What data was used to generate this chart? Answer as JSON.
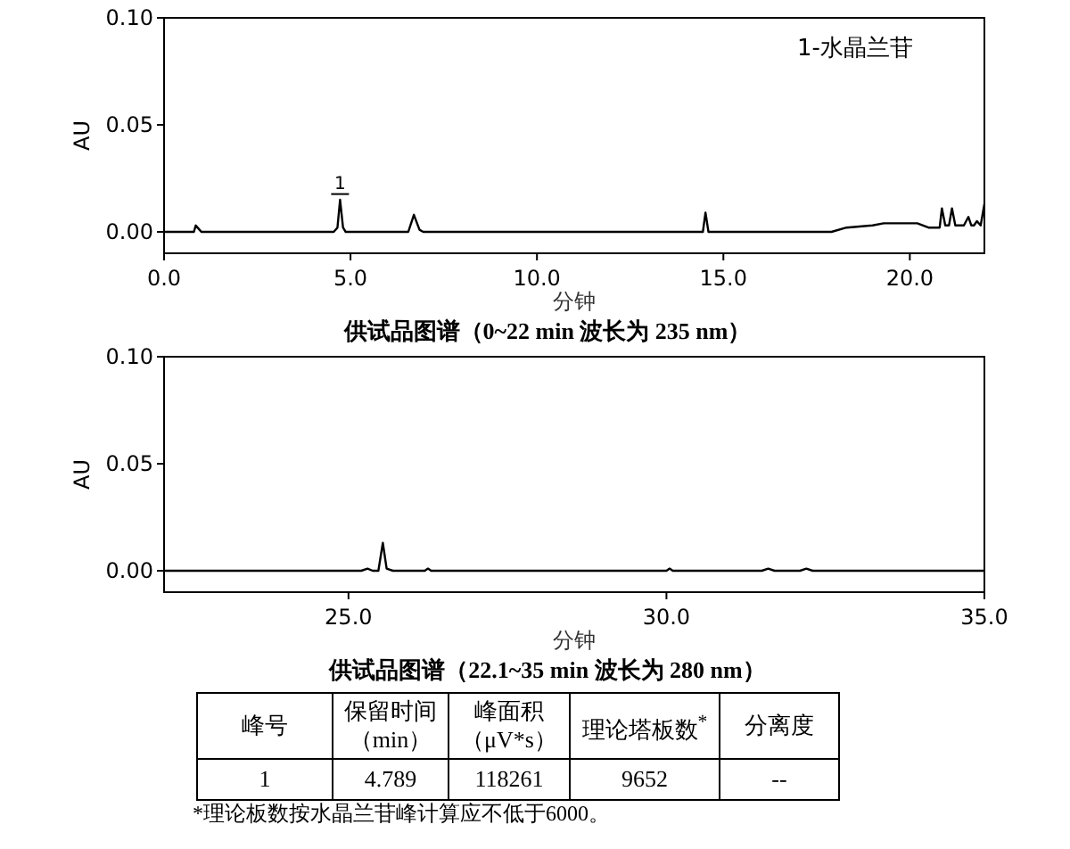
{
  "chart_data": [
    {
      "type": "line",
      "title": "供试品图谱（0~22 min 波长为 235 nm）",
      "xlabel": "分钟",
      "ylabel": "AU",
      "color": "#000000",
      "x": [
        0,
        0.8,
        0.85,
        0.95,
        1.0,
        4.55,
        4.65,
        4.72,
        4.8,
        4.87,
        6.55,
        6.7,
        6.85,
        6.95,
        14.45,
        14.52,
        14.6,
        17.9,
        18.3,
        19.0,
        19.3,
        20.2,
        20.5,
        20.8,
        20.86,
        20.95,
        21.05,
        21.13,
        21.22,
        21.45,
        21.57,
        21.65,
        21.72,
        21.8,
        21.9,
        22.0
      ],
      "values": [
        0,
        0,
        0.003,
        0.001,
        0,
        0,
        0.002,
        0.015,
        0.002,
        0,
        0,
        0.008,
        0.001,
        0,
        0,
        0.009,
        0,
        0,
        0.002,
        0.003,
        0.004,
        0.004,
        0.002,
        0.002,
        0.011,
        0.003,
        0.003,
        0.011,
        0.003,
        0.003,
        0.007,
        0.003,
        0.003,
        0.005,
        0.003,
        0.013
      ],
      "xlim": [
        0,
        22
      ],
      "ylim": [
        -0.01,
        0.1
      ],
      "xticks": [
        {
          "value": 0,
          "label": "0.0"
        },
        {
          "value": 5,
          "label": "5.0"
        },
        {
          "value": 10,
          "label": "10.0"
        },
        {
          "value": 15,
          "label": "15.0"
        },
        {
          "value": 20,
          "label": "20.0"
        }
      ],
      "yticks": [
        {
          "value": 0,
          "label": "0.00"
        },
        {
          "value": 0.05,
          "label": "0.05"
        },
        {
          "value": 0.1,
          "label": "0.10"
        }
      ],
      "annotations": [
        "1-水晶兰苷",
        {
          "text": "1",
          "x": 4.72,
          "y": 0.016
        }
      ]
    },
    {
      "type": "line",
      "title": "供试品图谱（22.1~35 min 波长为 280 nm）",
      "xlabel": "分钟",
      "ylabel": "AU",
      "color": "#000000",
      "x": [
        22.1,
        25.2,
        25.3,
        25.38,
        25.47,
        25.54,
        25.6,
        25.7,
        26.2,
        26.25,
        26.3,
        30.0,
        30.05,
        30.1,
        31.5,
        31.6,
        31.7,
        32.1,
        32.2,
        32.3,
        35
      ],
      "values": [
        0,
        0,
        0.001,
        0,
        0,
        0.013,
        0.001,
        0,
        0,
        0.001,
        0,
        0,
        0.001,
        0,
        0,
        0.001,
        0,
        0,
        0.001,
        0,
        0
      ],
      "xlim": [
        22.1,
        35
      ],
      "ylim": [
        -0.01,
        0.1
      ],
      "xticks": [
        {
          "value": 25,
          "label": "25.0"
        },
        {
          "value": 30,
          "label": "30.0"
        },
        {
          "value": 35,
          "label": "35.0"
        }
      ],
      "yticks": [
        {
          "value": 0,
          "label": "0.00"
        },
        {
          "value": 0.05,
          "label": "0.05"
        },
        {
          "value": 0.1,
          "label": "0.10"
        }
      ]
    },
    {
      "type": "other",
      "annotations": [
        "峰号",
        "保留时间（min）",
        "峰面积（μV*s）",
        "理论塔板数$^{*}$",
        "分离度",
        "1",
        "4.789",
        "118261",
        "9652",
        "--",
        "*理论板数按水晶兰苷峰计算应不低于6000。"
      ]
    }
  ]
}
